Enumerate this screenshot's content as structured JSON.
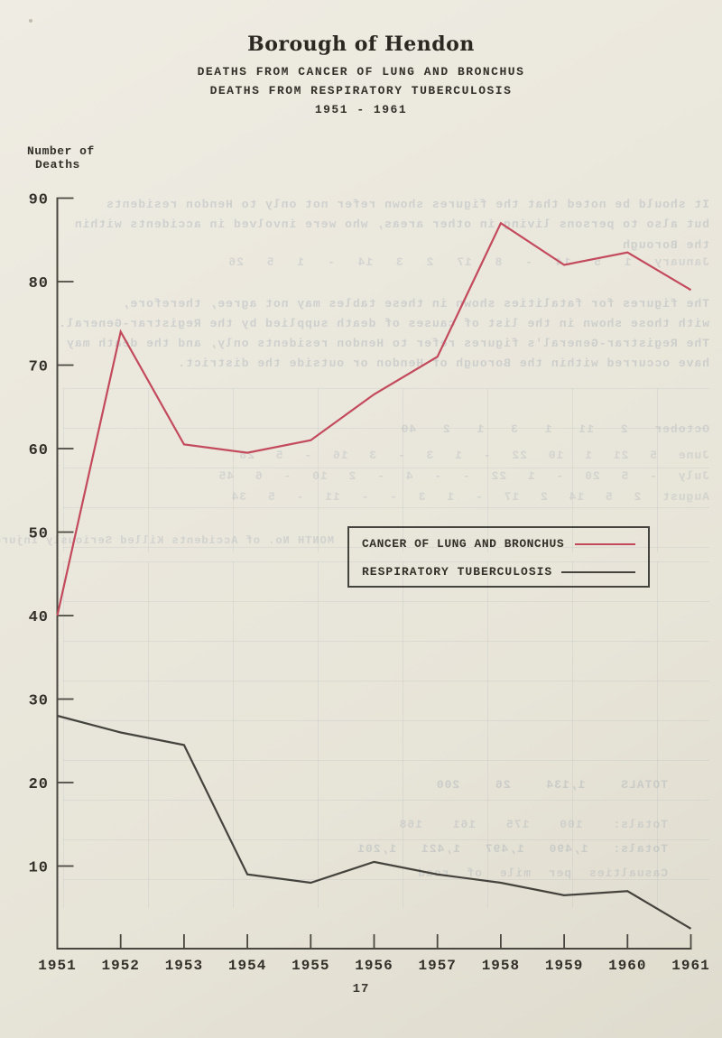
{
  "page": {
    "title": "Borough of Hendon",
    "subtitle_line1": "DEATHS FROM CANCER OF LUNG AND BRONCHUS",
    "subtitle_line2": "DEATHS FROM RESPIRATORY TUBERCULOSIS",
    "subtitle_line3": "1951 - 1961",
    "page_number": "17"
  },
  "y_axis_label": {
    "line1": "Number of",
    "line2": "Deaths"
  },
  "legend": {
    "items": [
      {
        "label": "CANCER OF LUNG AND BRONCHUS",
        "color": "#c34a5c"
      },
      {
        "label": "RESPIRATORY TUBERCULOSIS",
        "color": "#45433d"
      }
    ]
  },
  "colors": {
    "paper": "#e9e6dc",
    "ink": "#33302a",
    "axis": "#4a4741",
    "cancer_line": "#c34a5c",
    "tb_line": "#45433d",
    "ghost": "#8d99ac"
  },
  "chart_data": {
    "type": "line",
    "title": "DEATHS FROM CANCER OF LUNG AND BRONCHUS / DEATHS FROM RESPIRATORY TUBERCULOSIS 1951 - 1961",
    "categories": [
      "1951",
      "1952",
      "1953",
      "1954",
      "1955",
      "1956",
      "1957",
      "1958",
      "1959",
      "1960",
      "1961"
    ],
    "series": [
      {
        "name": "CANCER OF LUNG AND BRONCHUS",
        "color": "#c34a5c",
        "values": [
          40,
          74,
          60.5,
          59.5,
          61,
          66.5,
          71,
          87,
          82,
          83.5,
          79
        ]
      },
      {
        "name": "RESPIRATORY TUBERCULOSIS",
        "color": "#45433d",
        "values": [
          28,
          26,
          24.5,
          9,
          8,
          10.5,
          9,
          8,
          6.5,
          7,
          2.5
        ]
      }
    ],
    "xlabel": "",
    "ylabel": "Number of Deaths",
    "ylim": [
      0,
      90
    ],
    "yticks": [
      10,
      20,
      30,
      40,
      50,
      60,
      70,
      80,
      90
    ],
    "grid": false,
    "legend_position": "center-right"
  },
  "ghost": {
    "lines": [
      "It should be noted that the figures shown refer not only to Hendon residents",
      "but also to persons living in other areas, who were involved in accidents within",
      "the Borough",
      "January 1 5 14 - 8 17 2 3 14 - 1 5 26",
      "The figures for fatalities shown in these tables may not agree, therefore,",
      "with those shown in the list of causes of death supplied by the Registrar-General.",
      "The Registrar-General's figures refer to Hendon residents only, and the death may",
      "have occurred within the Borough of Hendon or outside the district.",
      "October 2 11 1 3 1 2 40",
      "June 5 21 1 10 22 - 1 3 - 3 16 - 5 28",
      "July - 5 20 - 1 22 - - 4 - 2 10 - 6 45",
      "August 2 5 14 2 17 - 1 3 - - 11 - 5 34",
      "MONTH No. of Accidents Killed Seriously Injured Slightly Injured",
      "TOTALS 1,134 26 200",
      "Totals: 100 175 161 168",
      "Totals: 1,490 1,497 1,421 1,201",
      "Casualties per mile of road"
    ]
  }
}
